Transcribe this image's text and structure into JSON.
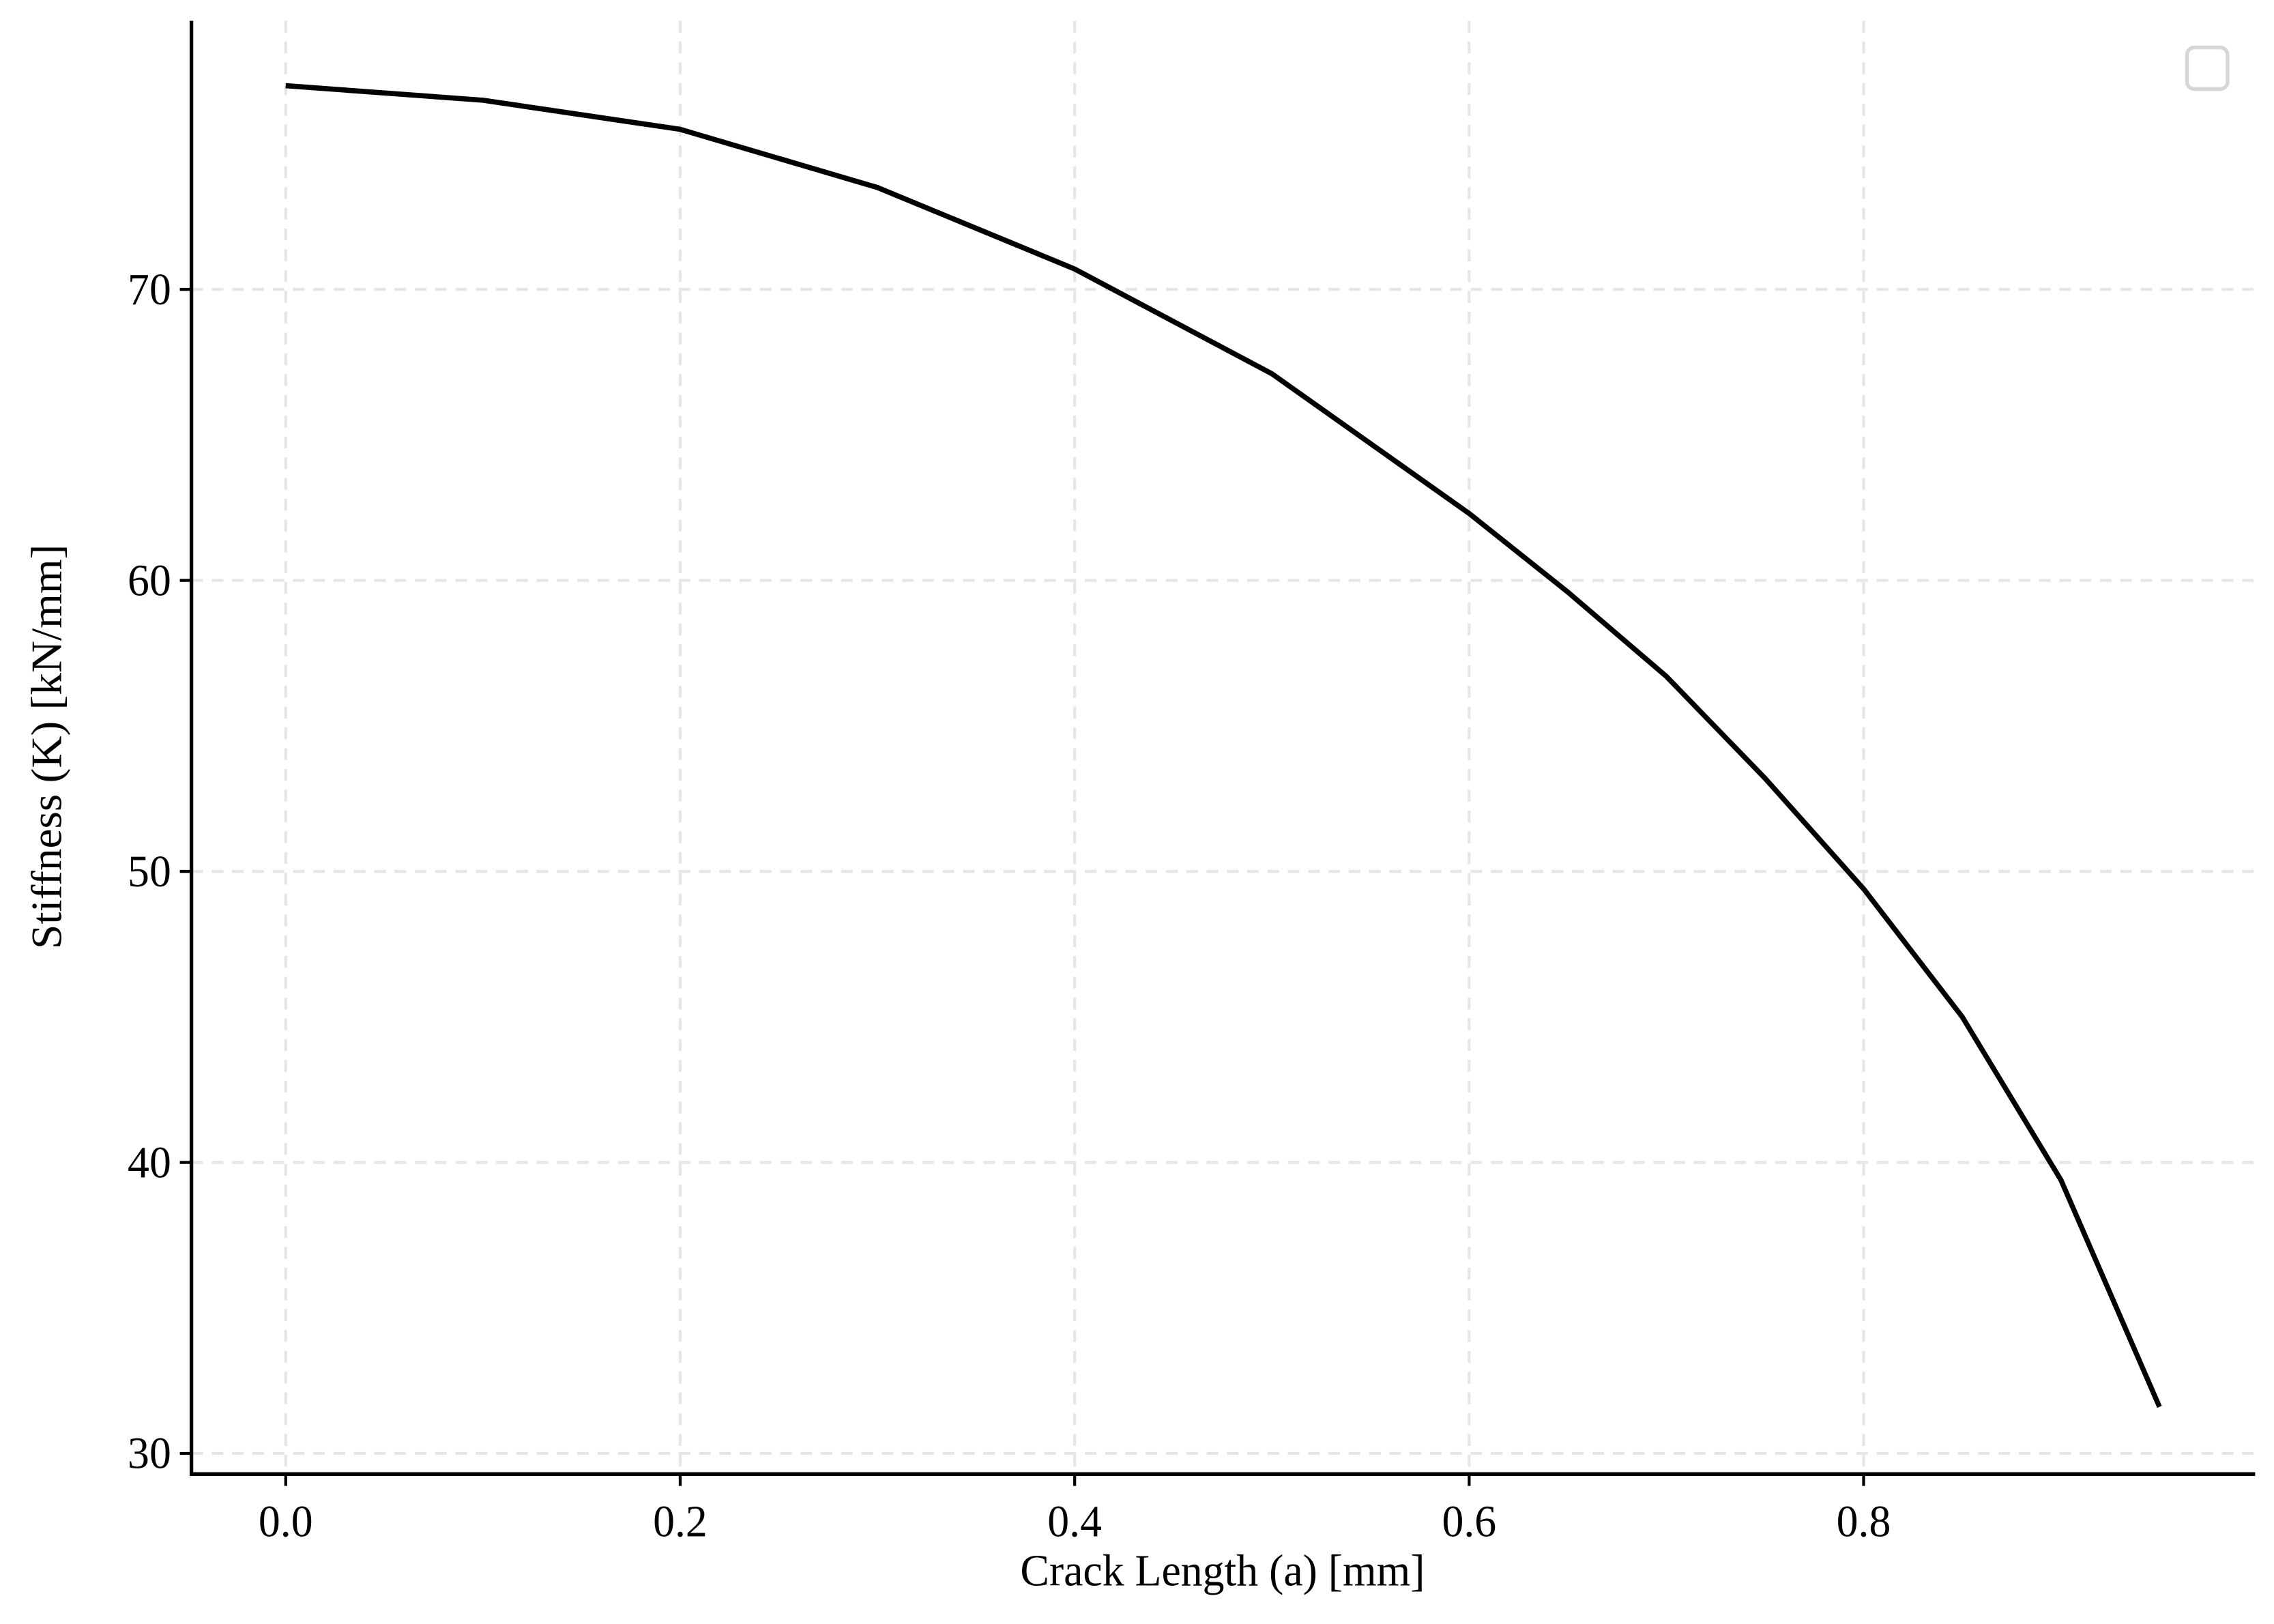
{
  "chart_data": {
    "type": "line",
    "xlabel": "Crack Length (a) [mm]",
    "ylabel": "Stiffness (K) [kN/mm]",
    "x": [
      0,
      0.1,
      0.2,
      0.3,
      0.4,
      0.5,
      0.6,
      0.65,
      0.7,
      0.75,
      0.8,
      0.85,
      0.9,
      0.95
    ],
    "series": [
      {
        "color": "#000000",
        "values": [
          77.0,
          76.5,
          75.5,
          73.5,
          70.7,
          67.1,
          62.3,
          59.6,
          56.7,
          53.2,
          49.4,
          45.0,
          39.4,
          31.6
        ]
      }
    ],
    "xlim": [
      -0.0478,
      0.9985
    ],
    "ylim": [
      29.29,
      79.23
    ],
    "xticks": [
      {
        "value": 0,
        "label": "0.0"
      },
      0.2,
      0.4,
      0.6,
      0.8
    ],
    "yticks": [
      30,
      40,
      50,
      60,
      70
    ],
    "grid": true
  }
}
